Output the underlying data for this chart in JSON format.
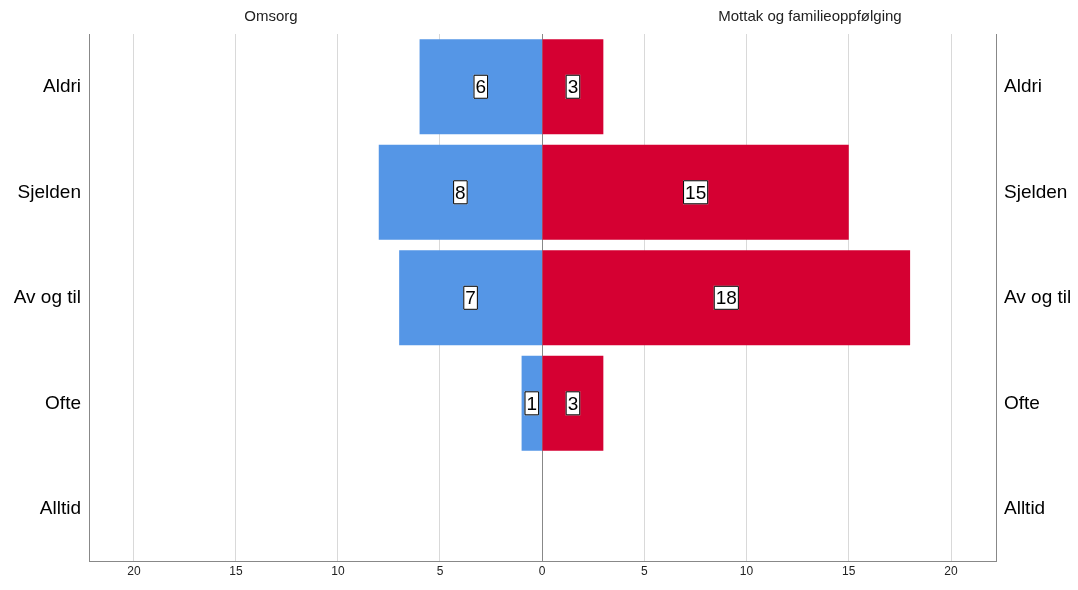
{
  "chart_data": [
    {
      "type": "bar",
      "orientation": "horizontal",
      "title": "Omsorg",
      "categories": [
        "Aldri",
        "Sjelden",
        "Av og til",
        "Ofte",
        "Alltid"
      ],
      "values": [
        6,
        8,
        7,
        1,
        null
      ],
      "color": "#5596e6",
      "xlim": [
        22.2,
        0
      ],
      "xticks": [
        20,
        15,
        10,
        5
      ],
      "grid": "x",
      "data_labels": true,
      "legend": false
    },
    {
      "type": "bar",
      "orientation": "horizontal",
      "title": "Mottak og familieoppfølging",
      "categories": [
        "Aldri",
        "Sjelden",
        "Av og til",
        "Ofte",
        "Alltid"
      ],
      "values": [
        3,
        15,
        18,
        3,
        null
      ],
      "color": "#d50032",
      "xlim": [
        0,
        22.2
      ],
      "xticks": [
        0,
        5,
        10,
        15,
        20
      ],
      "grid": "x",
      "data_labels": true,
      "legend": false
    }
  ]
}
